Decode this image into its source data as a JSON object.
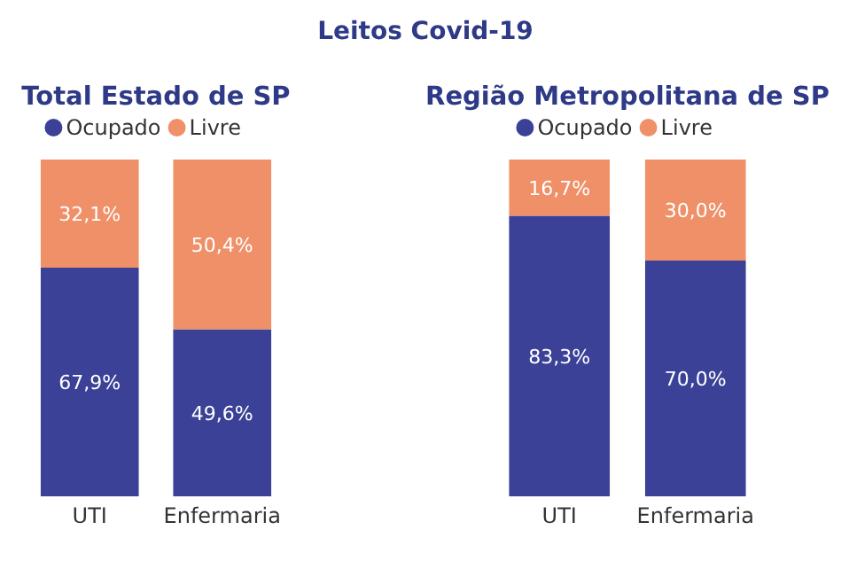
{
  "chart_data": [
    {
      "type": "bar",
      "title": "Total Estado de SP",
      "annotations": [
        "Leitos Covid-19"
      ],
      "categories": [
        "UTI",
        "Enfermaria"
      ],
      "stacked": true,
      "legend": "top",
      "series": [
        {
          "name": "Ocupado",
          "color": "#3a4196",
          "values": [
            67.9,
            49.6
          ],
          "value_labels": [
            "67,9%",
            "49,6%"
          ]
        },
        {
          "name": "Livre",
          "color": "#ef9068",
          "values": [
            32.1,
            50.4
          ],
          "value_labels": [
            "32,1%",
            "50,4%"
          ]
        }
      ]
    },
    {
      "type": "bar",
      "title": "Região Metropolitana de SP",
      "categories": [
        "UTI",
        "Enfermaria"
      ],
      "stacked": true,
      "legend": "top",
      "series": [
        {
          "name": "Ocupado",
          "color": "#3a4196",
          "values": [
            83.3,
            70.0
          ],
          "value_labels": [
            "83,3%",
            "70,0%"
          ]
        },
        {
          "name": "Livre",
          "color": "#ef9068",
          "values": [
            16.7,
            30.0
          ],
          "value_labels": [
            "16,7%",
            "30,0%"
          ]
        }
      ]
    }
  ]
}
